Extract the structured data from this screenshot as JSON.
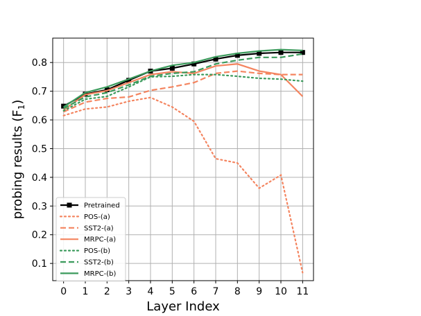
{
  "chart_data": {
    "type": "line",
    "title": "",
    "xlabel": "Layer Index",
    "ylabel": "probing results (F",
    "ylabel_sub": "1",
    "ylabel_close": ")",
    "x": [
      0,
      1,
      2,
      3,
      4,
      5,
      6,
      7,
      8,
      9,
      10,
      11
    ],
    "x_ticks": [
      "0",
      "1",
      "2",
      "3",
      "4",
      "5",
      "6",
      "7",
      "8",
      "9",
      "10",
      "11"
    ],
    "xlim": [
      -0.5,
      11.5
    ],
    "ylim": [
      0.04,
      0.885
    ],
    "y_ticks": [
      "0.1",
      "0.2",
      "0.3",
      "0.4",
      "0.5",
      "0.6",
      "0.7",
      "0.8"
    ],
    "grid": true,
    "legend_position": "lower-left",
    "series": [
      {
        "name": "Pretrained",
        "color": "#000000",
        "style": "solid",
        "marker": "square",
        "values": [
          0.648,
          0.69,
          0.705,
          0.738,
          0.77,
          0.78,
          0.795,
          0.812,
          0.825,
          0.832,
          0.835,
          0.835
        ]
      },
      {
        "name": "POS-(a)",
        "color": "#f4845f",
        "style": "dotted",
        "marker": "none",
        "values": [
          0.615,
          0.638,
          0.645,
          0.665,
          0.678,
          0.645,
          0.595,
          0.465,
          0.45,
          0.362,
          0.408,
          0.068
        ]
      },
      {
        "name": "SST2-(a)",
        "color": "#f4845f",
        "style": "dashed",
        "marker": "none",
        "values": [
          0.628,
          0.662,
          0.675,
          0.68,
          0.703,
          0.715,
          0.73,
          0.762,
          0.77,
          0.762,
          0.758,
          0.758
        ]
      },
      {
        "name": "MRPC-(a)",
        "color": "#f4845f",
        "style": "solid",
        "marker": "none",
        "values": [
          0.635,
          0.688,
          0.702,
          0.73,
          0.758,
          0.768,
          0.762,
          0.788,
          0.795,
          0.77,
          0.758,
          0.682
        ]
      },
      {
        "name": "POS-(b)",
        "color": "#3a9a5b",
        "style": "dotted",
        "marker": "none",
        "values": [
          0.632,
          0.672,
          0.682,
          0.715,
          0.75,
          0.752,
          0.758,
          0.758,
          0.752,
          0.745,
          0.742,
          0.735
        ]
      },
      {
        "name": "SST2-(b)",
        "color": "#3a9a5b",
        "style": "dashed",
        "marker": "none",
        "values": [
          0.64,
          0.68,
          0.695,
          0.722,
          0.752,
          0.762,
          0.768,
          0.795,
          0.808,
          0.818,
          0.818,
          0.83
        ]
      },
      {
        "name": "MRPC-(b)",
        "color": "#3a9a5b",
        "style": "solid",
        "marker": "none",
        "values": [
          0.645,
          0.695,
          0.715,
          0.742,
          0.77,
          0.79,
          0.8,
          0.82,
          0.832,
          0.84,
          0.845,
          0.842
        ]
      }
    ]
  }
}
